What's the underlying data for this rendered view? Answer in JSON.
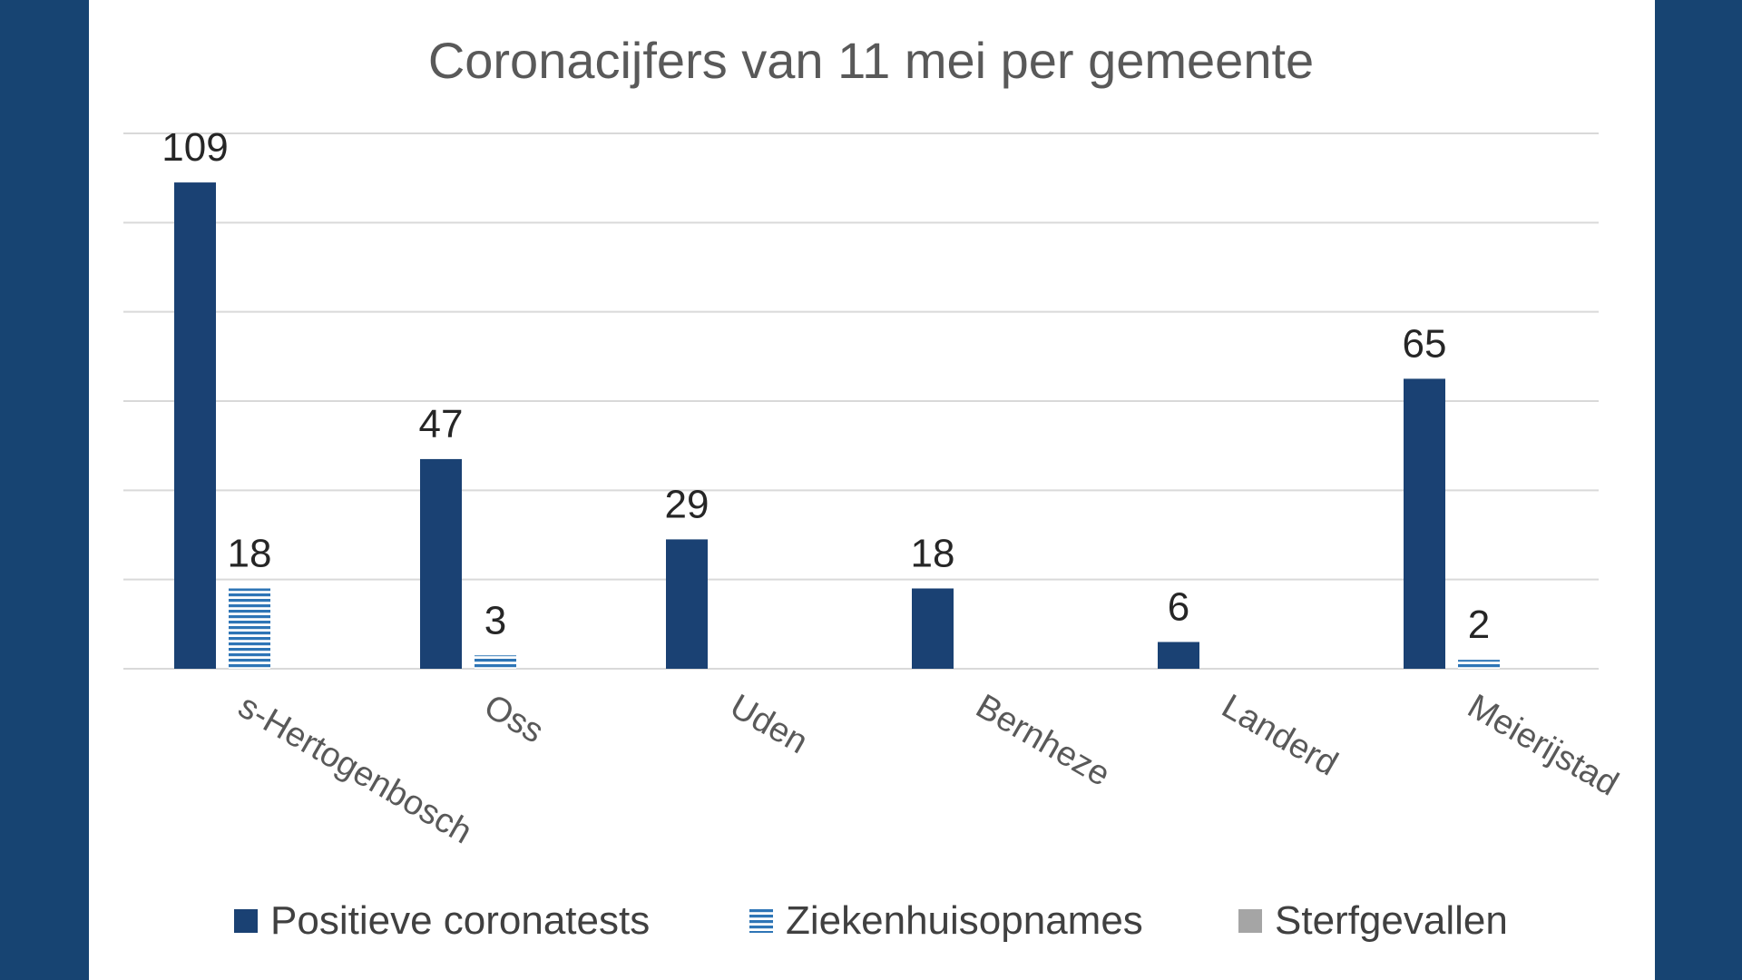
{
  "colors": {
    "background": "#174472",
    "panel": "#ffffff",
    "positive": "#1a4173",
    "hospital": "#2e75b6",
    "deaths": "#a5a5a5"
  },
  "chart_data": {
    "type": "bar",
    "title": "Coronacijfers van 11 mei per gemeente",
    "xlabel": "",
    "ylabel": "",
    "ylim": [
      0,
      120
    ],
    "grid": true,
    "legend_position": "bottom",
    "categories": [
      "s-Hertogenbosch",
      "Oss",
      "Uden",
      "Bernheze",
      "Landerd",
      "Meierijstad"
    ],
    "series": [
      {
        "name": "Positieve coronatests",
        "values": [
          109,
          47,
          29,
          18,
          6,
          65
        ],
        "labels": [
          "109",
          "47",
          "29",
          "18",
          "6",
          "65"
        ],
        "pattern": "solid"
      },
      {
        "name": "Ziekenhuisopnames",
        "values": [
          18,
          3,
          0,
          0,
          0,
          2
        ],
        "labels": [
          "18",
          "3",
          "",
          "",
          "",
          "2"
        ],
        "pattern": "horizontal-stripes"
      },
      {
        "name": "Sterfgevallen",
        "values": [
          0,
          0,
          0,
          0,
          0,
          0
        ],
        "labels": [
          "",
          "",
          "",
          "",
          "",
          ""
        ],
        "pattern": "solid"
      }
    ]
  }
}
